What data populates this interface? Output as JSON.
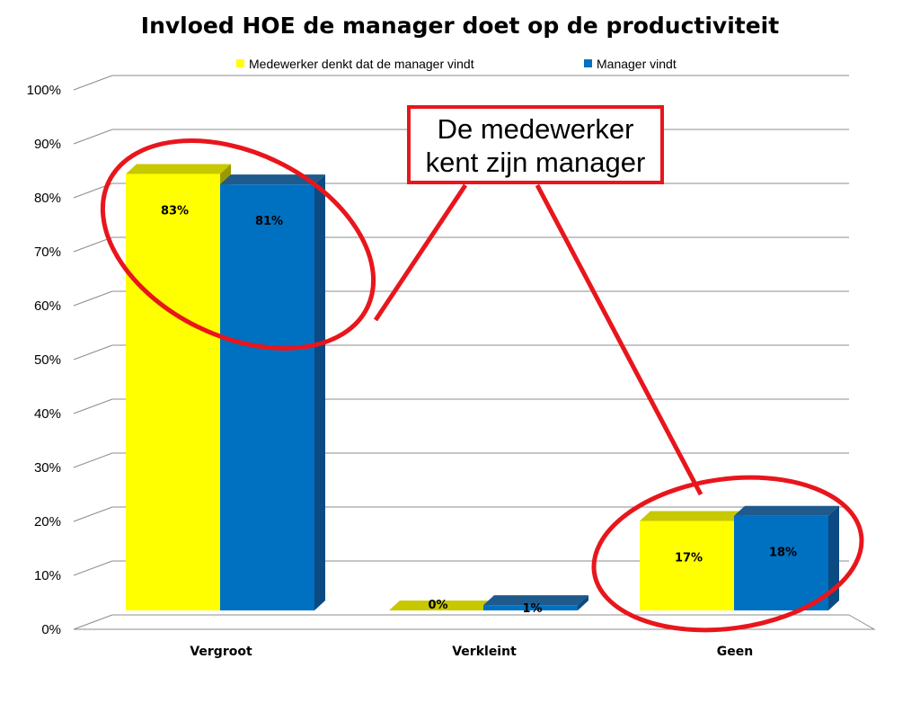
{
  "chart_data": {
    "type": "bar",
    "title": "Invloed HOE de manager doet op de productiviteit",
    "categories": [
      "Vergroot",
      "Verkleint",
      "Geen"
    ],
    "series": [
      {
        "name": "Medewerker denkt dat de manager vindt",
        "values": [
          83,
          0,
          17
        ],
        "color": "#ffff00",
        "labels": [
          "83%",
          "0%",
          "17%"
        ]
      },
      {
        "name": "Manager vindt",
        "values": [
          81,
          1,
          18
        ],
        "color": "#0070c0",
        "labels": [
          "81%",
          "1%",
          "18%"
        ]
      }
    ],
    "ylim": [
      0,
      100
    ],
    "yticks": [
      "0%",
      "10%",
      "20%",
      "30%",
      "40%",
      "50%",
      "60%",
      "70%",
      "80%",
      "90%",
      "100%"
    ],
    "grid": true,
    "legend_position": "top",
    "style": "3d-clustered-column"
  },
  "annotation": {
    "text_line1": "De medewerker",
    "text_line2": "kent zijn manager",
    "color": "#e8161c"
  }
}
